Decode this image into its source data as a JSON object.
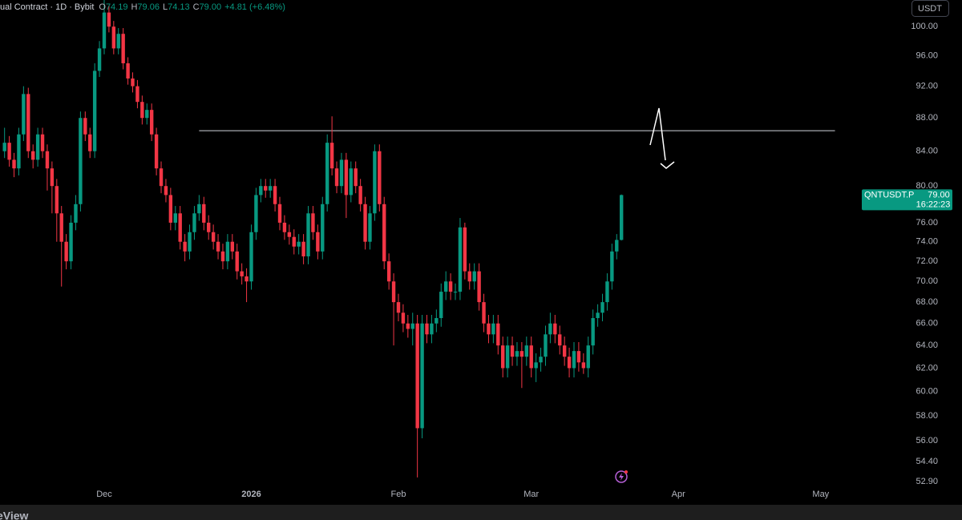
{
  "chart_data": {
    "type": "candlestick",
    "header": {
      "symbol": "ual Contract · 1D · Bybit",
      "o_label": "O",
      "o": "74.19",
      "h_label": "H",
      "h": "79.06",
      "l_label": "L",
      "l": "74.13",
      "c_label": "C",
      "c": "79.00",
      "change": "+4.81 (+6.48%)"
    },
    "currency": "USDT",
    "price_label": {
      "symbol": "QNTUSDT.P",
      "value": 79.0,
      "text": "79.00",
      "countdown": "16:22:23"
    },
    "footer": "eView",
    "up_color": "#089981",
    "down_color": "#f23645",
    "log_y": true,
    "ylim": [
      52.25,
      103.8
    ],
    "yticks": [
      {
        "value": 100,
        "label": "100.00"
      },
      {
        "value": 96,
        "label": "96.00"
      },
      {
        "value": 92,
        "label": "92.00"
      },
      {
        "value": 88,
        "label": "88.00"
      },
      {
        "value": 84,
        "label": "84.00"
      },
      {
        "value": 80,
        "label": "80.00"
      },
      {
        "value": 76,
        "label": "76.00"
      },
      {
        "value": 74,
        "label": "74.00"
      },
      {
        "value": 72,
        "label": "72.00"
      },
      {
        "value": 70,
        "label": "70.00"
      },
      {
        "value": 68,
        "label": "68.00"
      },
      {
        "value": 66,
        "label": "66.00"
      },
      {
        "value": 64,
        "label": "64.00"
      },
      {
        "value": 62,
        "label": "62.00"
      },
      {
        "value": 60,
        "label": "60.00"
      },
      {
        "value": 58,
        "label": "58.00"
      },
      {
        "value": 56,
        "label": "56.00"
      },
      {
        "value": 54.4,
        "label": "54.40"
      },
      {
        "value": 52.9,
        "label": "52.90"
      }
    ],
    "xlim": [
      -0.96,
      186.9
    ],
    "xticks": [
      {
        "value": 21,
        "label": "Dec"
      },
      {
        "value": 52,
        "label": "2026"
      },
      {
        "value": 83,
        "label": "Feb"
      },
      {
        "value": 111,
        "label": "Mar"
      },
      {
        "value": 142,
        "label": "Apr"
      },
      {
        "value": 172,
        "label": "May"
      }
    ],
    "hline": {
      "value": 86.44,
      "start": 41,
      "end": 175
    },
    "ohlc": [
      [
        84,
        86.8,
        83.2,
        85
      ],
      [
        85,
        85.8,
        82.2,
        83
      ],
      [
        83,
        83.8,
        81,
        82
      ],
      [
        82,
        86.8,
        81.2,
        86
      ],
      [
        86,
        92,
        85.2,
        91
      ],
      [
        91,
        91.8,
        83.2,
        84
      ],
      [
        84,
        84.8,
        82,
        83
      ],
      [
        83,
        86.8,
        82.2,
        86
      ],
      [
        86,
        86.8,
        83.2,
        84
      ],
      [
        84,
        84.8,
        79.5,
        82
      ],
      [
        82,
        82.8,
        77,
        80
      ],
      [
        80,
        80.8,
        74,
        77
      ],
      [
        77,
        77.8,
        69.5,
        74
      ],
      [
        74,
        74.8,
        71.2,
        72
      ],
      [
        72,
        76.8,
        71.2,
        76
      ],
      [
        76,
        79,
        75.2,
        78
      ],
      [
        78,
        88.8,
        77.2,
        88
      ],
      [
        88,
        88.8,
        85.2,
        86
      ],
      [
        86,
        86.8,
        83.2,
        84
      ],
      [
        84,
        95,
        83.2,
        94
      ],
      [
        94,
        98,
        93.2,
        97
      ],
      [
        97,
        104,
        96.2,
        102
      ],
      [
        102,
        103,
        99.2,
        100
      ],
      [
        100,
        100.8,
        96.2,
        97
      ],
      [
        97,
        99.8,
        96.2,
        99
      ],
      [
        99,
        99.8,
        94.2,
        95
      ],
      [
        95,
        95.8,
        92.2,
        93
      ],
      [
        93,
        93.8,
        91.2,
        92
      ],
      [
        92,
        92.8,
        89.2,
        90
      ],
      [
        90,
        90.8,
        87.2,
        88
      ],
      [
        88,
        89.8,
        87.2,
        89
      ],
      [
        89,
        89.8,
        85.2,
        86
      ],
      [
        86,
        86.8,
        81.2,
        82
      ],
      [
        82,
        82.8,
        79.2,
        80
      ],
      [
        80,
        80.8,
        78.2,
        79
      ],
      [
        79,
        79.8,
        75.2,
        76
      ],
      [
        76,
        77.8,
        75.2,
        77
      ],
      [
        77,
        77.8,
        73.2,
        74
      ],
      [
        74,
        74.8,
        72,
        73
      ],
      [
        73,
        75.8,
        72.2,
        75
      ],
      [
        75,
        77.8,
        74.2,
        77
      ],
      [
        77,
        79,
        76.2,
        78
      ],
      [
        78,
        78.8,
        75.2,
        76
      ],
      [
        76,
        76.8,
        74.2,
        75
      ],
      [
        75,
        75.8,
        73.2,
        74
      ],
      [
        74,
        74.8,
        72.2,
        73
      ],
      [
        73,
        73.8,
        71.2,
        72
      ],
      [
        72,
        74.8,
        71.2,
        74
      ],
      [
        74,
        74.8,
        72.2,
        73
      ],
      [
        73,
        73.8,
        70.2,
        71
      ],
      [
        71,
        71.8,
        69.7,
        70.5
      ],
      [
        70.5,
        71.3,
        68,
        70
      ],
      [
        70,
        75.8,
        69.2,
        75
      ],
      [
        75,
        79.8,
        74.2,
        79
      ],
      [
        79,
        80.8,
        78.2,
        80
      ],
      [
        80,
        80.8,
        78.7,
        79.5
      ],
      [
        79.5,
        80.8,
        78.7,
        80
      ],
      [
        80,
        80.8,
        77.2,
        78
      ],
      [
        78,
        78.8,
        75.2,
        76
      ],
      [
        76,
        76.8,
        74.2,
        75
      ],
      [
        75,
        75.8,
        73.7,
        74.5
      ],
      [
        74.5,
        75.3,
        72.7,
        73.5
      ],
      [
        73.5,
        74.8,
        72.7,
        74
      ],
      [
        74,
        74.8,
        71.7,
        72.5
      ],
      [
        72.5,
        77.8,
        71.7,
        77
      ],
      [
        77,
        77.8,
        74.2,
        75
      ],
      [
        75,
        75.8,
        72.2,
        73
      ],
      [
        73,
        78.8,
        72.2,
        78
      ],
      [
        78,
        86,
        77.2,
        85
      ],
      [
        85,
        88.2,
        81.2,
        82
      ],
      [
        82,
        82.8,
        79.2,
        80
      ],
      [
        80,
        83.8,
        79.2,
        83
      ],
      [
        83,
        83.8,
        76.5,
        79
      ],
      [
        79,
        82.8,
        78.2,
        82
      ],
      [
        82,
        82.8,
        79.2,
        80
      ],
      [
        80,
        80.8,
        77.2,
        78
      ],
      [
        78,
        78.8,
        73.2,
        74
      ],
      [
        74,
        77.8,
        73.2,
        77
      ],
      [
        77,
        84.8,
        76.2,
        84
      ],
      [
        84,
        84.8,
        77.2,
        78
      ],
      [
        78,
        78.8,
        71.2,
        72
      ],
      [
        72,
        72.8,
        69.2,
        70
      ],
      [
        70,
        70.8,
        64,
        68
      ],
      [
        68,
        68.8,
        66.2,
        67
      ],
      [
        67,
        67.8,
        65.2,
        66
      ],
      [
        66,
        66.8,
        64.7,
        65.5
      ],
      [
        65.5,
        67,
        64,
        66
      ],
      [
        66,
        66.8,
        53.2,
        57
      ],
      [
        57,
        66.8,
        56.2,
        66
      ],
      [
        66,
        66.8,
        64.2,
        65
      ],
      [
        65,
        66.8,
        64.2,
        66
      ],
      [
        66,
        67.3,
        65.2,
        66.5
      ],
      [
        66.5,
        69.8,
        65.7,
        69
      ],
      [
        69,
        71,
        68.2,
        70
      ],
      [
        70,
        70.8,
        68.2,
        69
      ],
      [
        69,
        69.8,
        68.2,
        69
      ],
      [
        69,
        76.5,
        68.2,
        75.5
      ],
      [
        75.5,
        76,
        70.2,
        71
      ],
      [
        71,
        71.8,
        69.2,
        70
      ],
      [
        70,
        71.8,
        69.2,
        71
      ],
      [
        71,
        71.8,
        67.2,
        68
      ],
      [
        68,
        68.8,
        65.2,
        66
      ],
      [
        66,
        66.8,
        64.2,
        65
      ],
      [
        65,
        66.8,
        64.2,
        66
      ],
      [
        66,
        66.8,
        63.2,
        64
      ],
      [
        64,
        64.8,
        61.2,
        62
      ],
      [
        62,
        64.8,
        61.2,
        64
      ],
      [
        64,
        64.8,
        62.2,
        63
      ],
      [
        63,
        64.3,
        62.2,
        63.5
      ],
      [
        63.5,
        64.3,
        60.3,
        63
      ],
      [
        63,
        64.8,
        62.2,
        64
      ],
      [
        64,
        64.8,
        61.2,
        62
      ],
      [
        62,
        63.3,
        60.8,
        62.5
      ],
      [
        62.5,
        63.8,
        61.7,
        63
      ],
      [
        63,
        65.8,
        62.2,
        65
      ],
      [
        65,
        67,
        64.2,
        66
      ],
      [
        66,
        66.8,
        64.2,
        65
      ],
      [
        65,
        65.8,
        63.2,
        64
      ],
      [
        64,
        64.8,
        62.2,
        63
      ],
      [
        63,
        63.8,
        61.2,
        62
      ],
      [
        62,
        64.3,
        61.2,
        63.5
      ],
      [
        63.5,
        64.3,
        61.7,
        62.5
      ],
      [
        62.5,
        63.3,
        61.5,
        62
      ],
      [
        62,
        64.8,
        61.2,
        64
      ],
      [
        64,
        67.3,
        63.2,
        66.5
      ],
      [
        66.5,
        67.8,
        65.7,
        67
      ],
      [
        67,
        68.8,
        66.2,
        68
      ],
      [
        68,
        70.8,
        67.2,
        70
      ],
      [
        70,
        73.8,
        69.2,
        73
      ],
      [
        73,
        74.8,
        72.2,
        74.19
      ],
      [
        74.19,
        79.06,
        74.13,
        79.0
      ]
    ]
  }
}
